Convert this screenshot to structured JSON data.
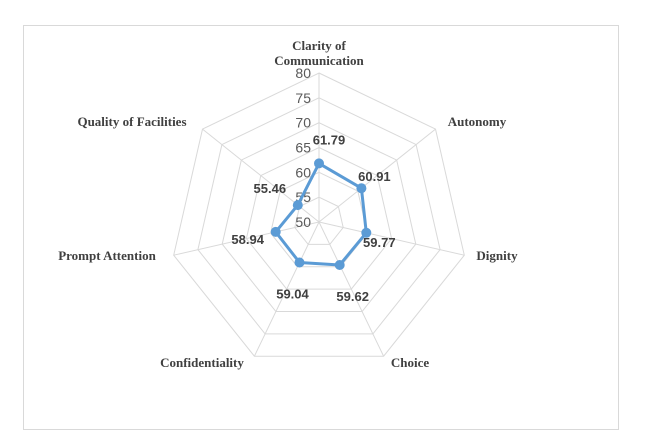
{
  "chart_data": {
    "type": "radar",
    "title": "",
    "categories": [
      [
        "Clarity of",
        "Communication"
      ],
      [
        "Autonomy"
      ],
      [
        "Dignity"
      ],
      [
        "Choice"
      ],
      [
        "Confidentiality"
      ],
      [
        "Prompt Attention"
      ],
      [
        "Quality of Facilities"
      ]
    ],
    "series": [
      {
        "values": [
          61.79,
          60.91,
          59.77,
          59.62,
          59.04,
          58.94,
          55.46
        ],
        "labels": [
          "61.79",
          "60.91",
          "59.77",
          "59.62",
          "59.04",
          "58.94",
          "55.46"
        ],
        "color": "#5b9bd5"
      }
    ],
    "rlim": [
      50,
      80
    ],
    "ticks": [
      50,
      55,
      60,
      65,
      70,
      75,
      80
    ],
    "grid_color": "#d9d9d9",
    "legend": "none"
  }
}
